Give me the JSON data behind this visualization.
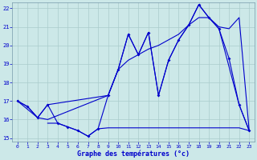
{
  "xlabel": "Graphe des températures (°c)",
  "bg_color": "#cce8e8",
  "grid_color": "#aacccc",
  "line_color": "#0000cc",
  "xlim": [
    -0.5,
    23.5
  ],
  "ylim": [
    14.8,
    22.3
  ],
  "yticks": [
    15,
    16,
    17,
    18,
    19,
    20,
    21,
    22
  ],
  "xticks": [
    0,
    1,
    2,
    3,
    4,
    5,
    6,
    7,
    8,
    9,
    10,
    11,
    12,
    13,
    14,
    15,
    16,
    17,
    18,
    19,
    20,
    21,
    22,
    23
  ],
  "line1_x": [
    0,
    1,
    2,
    3,
    4,
    5,
    6,
    7,
    8,
    9,
    10,
    11,
    12,
    13,
    14,
    15,
    16,
    17,
    18,
    19,
    20,
    21,
    22,
    23
  ],
  "line1_y": [
    17.0,
    16.7,
    16.1,
    16.8,
    15.8,
    15.6,
    15.4,
    15.1,
    15.5,
    17.3,
    18.7,
    20.6,
    19.5,
    20.7,
    17.3,
    19.2,
    20.3,
    21.1,
    22.2,
    21.5,
    20.9,
    19.3,
    16.8,
    15.4
  ],
  "line2_x": [
    0,
    2,
    3,
    9,
    10,
    11,
    12,
    13,
    14,
    15,
    16,
    17,
    18,
    19,
    20,
    22,
    23
  ],
  "line2_y": [
    17.0,
    16.1,
    16.8,
    17.3,
    18.7,
    20.6,
    19.5,
    20.7,
    17.3,
    19.2,
    20.3,
    21.1,
    22.2,
    21.5,
    20.9,
    16.8,
    15.4
  ],
  "line3_x": [
    0,
    1,
    2,
    3,
    9,
    10,
    11,
    12,
    13,
    14,
    15,
    16,
    17,
    18,
    19,
    20,
    21,
    22,
    23
  ],
  "line3_y": [
    17.0,
    16.7,
    16.1,
    16.0,
    17.3,
    18.7,
    19.2,
    19.5,
    19.8,
    20.0,
    20.3,
    20.6,
    21.1,
    21.5,
    21.5,
    21.0,
    20.9,
    21.5,
    15.4
  ],
  "line4_x": [
    3,
    4,
    5,
    6,
    7,
    8,
    9,
    10,
    11,
    12,
    13,
    14,
    15,
    16,
    17,
    18,
    19,
    20,
    21,
    22,
    23
  ],
  "line4_y": [
    15.8,
    15.8,
    15.6,
    15.4,
    15.1,
    15.5,
    15.55,
    15.55,
    15.55,
    15.55,
    15.55,
    15.55,
    15.55,
    15.55,
    15.55,
    15.55,
    15.55,
    15.55,
    15.55,
    15.55,
    15.4
  ]
}
